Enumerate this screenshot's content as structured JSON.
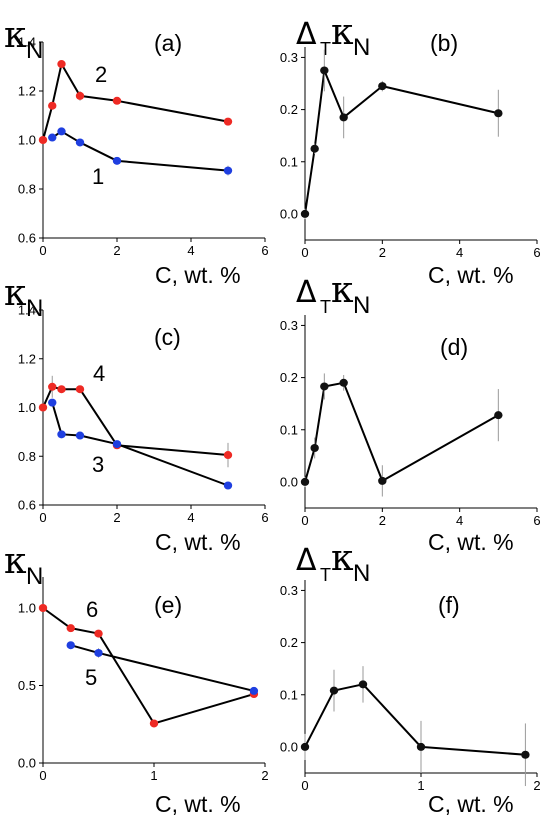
{
  "colors": {
    "red": "#ee2a24",
    "blue": "#1f3fe0",
    "black": "#111111",
    "errorbar": "#9a9a9a"
  },
  "chart_data": [
    {
      "id": "a",
      "type": "line",
      "panel_label": "(a)",
      "ylabel_symbol": "κ",
      "ylabel_sub": "N",
      "ylabel_prefix": "",
      "ylabel_prefix_sub": "",
      "xlabel": "C, wt. %",
      "xlim": [
        0,
        6
      ],
      "ylim": [
        0.6,
        1.4
      ],
      "xticks": [
        "0",
        "2",
        "4",
        "6"
      ],
      "yticks": [
        "0.6",
        "0.8",
        "1.0",
        "1.2",
        "1.4"
      ],
      "series": [
        {
          "name": "2",
          "color": "red",
          "x": [
            0,
            0.25,
            0.5,
            1,
            2,
            5
          ],
          "y": [
            1.0,
            1.14,
            1.31,
            1.18,
            1.16,
            1.075
          ],
          "err": [
            0.01,
            0.01,
            0.01,
            0.02,
            0.01,
            0.01
          ]
        },
        {
          "name": "1",
          "color": "blue",
          "x": [
            0.25,
            0.5,
            1,
            2,
            5
          ],
          "y": [
            1.01,
            1.035,
            0.99,
            0.915,
            0.875
          ],
          "err": [
            0.01,
            0.01,
            0.01,
            0.01,
            0.02
          ]
        }
      ]
    },
    {
      "id": "b",
      "type": "line",
      "panel_label": "(b)",
      "ylabel_symbol": "κ",
      "ylabel_sub": "N",
      "ylabel_prefix": "Δ",
      "ylabel_prefix_sub": "T",
      "xlabel": "C, wt. %",
      "xlim": [
        0,
        6
      ],
      "ylim": [
        -0.05,
        0.32
      ],
      "xticks": [
        "0",
        "2",
        "4",
        "6"
      ],
      "yticks": [
        "0.0",
        "0.1",
        "0.2",
        "0.3"
      ],
      "series": [
        {
          "name": "",
          "color": "black",
          "x": [
            0,
            0.25,
            0.5,
            1,
            2,
            5
          ],
          "y": [
            0.0,
            0.125,
            0.275,
            0.185,
            0.245,
            0.193
          ],
          "err": [
            0.01,
            0.01,
            0.04,
            0.04,
            0.01,
            0.045
          ]
        }
      ]
    },
    {
      "id": "c",
      "type": "line",
      "panel_label": "(c)",
      "ylabel_symbol": "κ",
      "ylabel_sub": "N",
      "ylabel_prefix": "",
      "ylabel_prefix_sub": "",
      "xlabel": "C, wt. %",
      "xlim": [
        0,
        6
      ],
      "ylim": [
        0.6,
        1.4
      ],
      "xticks": [
        "0",
        "2",
        "4",
        "6"
      ],
      "yticks": [
        "0.6",
        "0.8",
        "1.0",
        "1.2",
        "1.4"
      ],
      "series": [
        {
          "name": "4",
          "color": "red",
          "x": [
            0,
            0.25,
            0.5,
            1,
            2,
            5
          ],
          "y": [
            1.0,
            1.085,
            1.075,
            1.075,
            0.845,
            0.805
          ],
          "err": [
            0.01,
            0.045,
            0.01,
            0.01,
            0.01,
            0.05
          ]
        },
        {
          "name": "3",
          "color": "blue",
          "x": [
            0.25,
            0.5,
            1,
            2,
            5
          ],
          "y": [
            1.02,
            0.89,
            0.885,
            0.85,
            0.68
          ],
          "err": [
            0.01,
            0.01,
            0.01,
            0.01,
            0.01
          ]
        }
      ]
    },
    {
      "id": "d",
      "type": "line",
      "panel_label": "(d)",
      "ylabel_symbol": "κ",
      "ylabel_sub": "N",
      "ylabel_prefix": "Δ",
      "ylabel_prefix_sub": "T",
      "xlabel": "C, wt. %",
      "xlim": [
        0,
        6
      ],
      "ylim": [
        -0.05,
        0.32
      ],
      "xticks": [
        "0",
        "2",
        "4",
        "6"
      ],
      "yticks": [
        "0.0",
        "0.1",
        "0.2",
        "0.3"
      ],
      "series": [
        {
          "name": "",
          "color": "black",
          "x": [
            0,
            0.25,
            0.5,
            1,
            2,
            5
          ],
          "y": [
            0.0,
            0.065,
            0.183,
            0.19,
            0.002,
            0.128
          ],
          "err": [
            0.01,
            0.02,
            0.025,
            0.015,
            0.03,
            0.05
          ]
        }
      ]
    },
    {
      "id": "e",
      "type": "line",
      "panel_label": "(e)",
      "ylabel_symbol": "κ",
      "ylabel_sub": "N",
      "ylabel_prefix": "",
      "ylabel_prefix_sub": "",
      "xlabel": "C, wt. %",
      "xlim": [
        0,
        2
      ],
      "ylim": [
        0,
        1.2
      ],
      "xticks": [
        "0",
        "1",
        "2"
      ],
      "yticks": [
        "0.0",
        "0.5",
        "1.0"
      ],
      "series": [
        {
          "name": "6",
          "color": "red",
          "x": [
            0,
            0.25,
            0.5,
            1,
            1.9
          ],
          "y": [
            1.0,
            0.87,
            0.835,
            0.255,
            0.445
          ],
          "err": [
            0.01,
            0.01,
            0.01,
            0.01,
            0.01
          ]
        },
        {
          "name": "5",
          "color": "blue",
          "x": [
            0.25,
            0.5,
            1.9
          ],
          "y": [
            0.76,
            0.71,
            0.465
          ],
          "err": [
            0.01,
            0.03,
            0.02
          ]
        }
      ]
    },
    {
      "id": "f",
      "type": "line",
      "panel_label": "(f)",
      "ylabel_symbol": "κ",
      "ylabel_sub": "N",
      "ylabel_prefix": "Δ",
      "ylabel_prefix_sub": "T",
      "xlabel": "C, wt. %",
      "xlim": [
        0,
        2
      ],
      "ylim": [
        -0.05,
        0.32
      ],
      "xticks": [
        "0",
        "1",
        "2"
      ],
      "yticks": [
        "0.0",
        "0.1",
        "0.2",
        "0.3"
      ],
      "series": [
        {
          "name": "",
          "color": "black",
          "x": [
            0,
            0.25,
            0.5,
            1,
            1.9
          ],
          "y": [
            0.0,
            0.108,
            0.12,
            0.0,
            -0.015
          ],
          "err": [
            0.025,
            0.04,
            0.035,
            0.05,
            0.06
          ]
        }
      ]
    }
  ]
}
